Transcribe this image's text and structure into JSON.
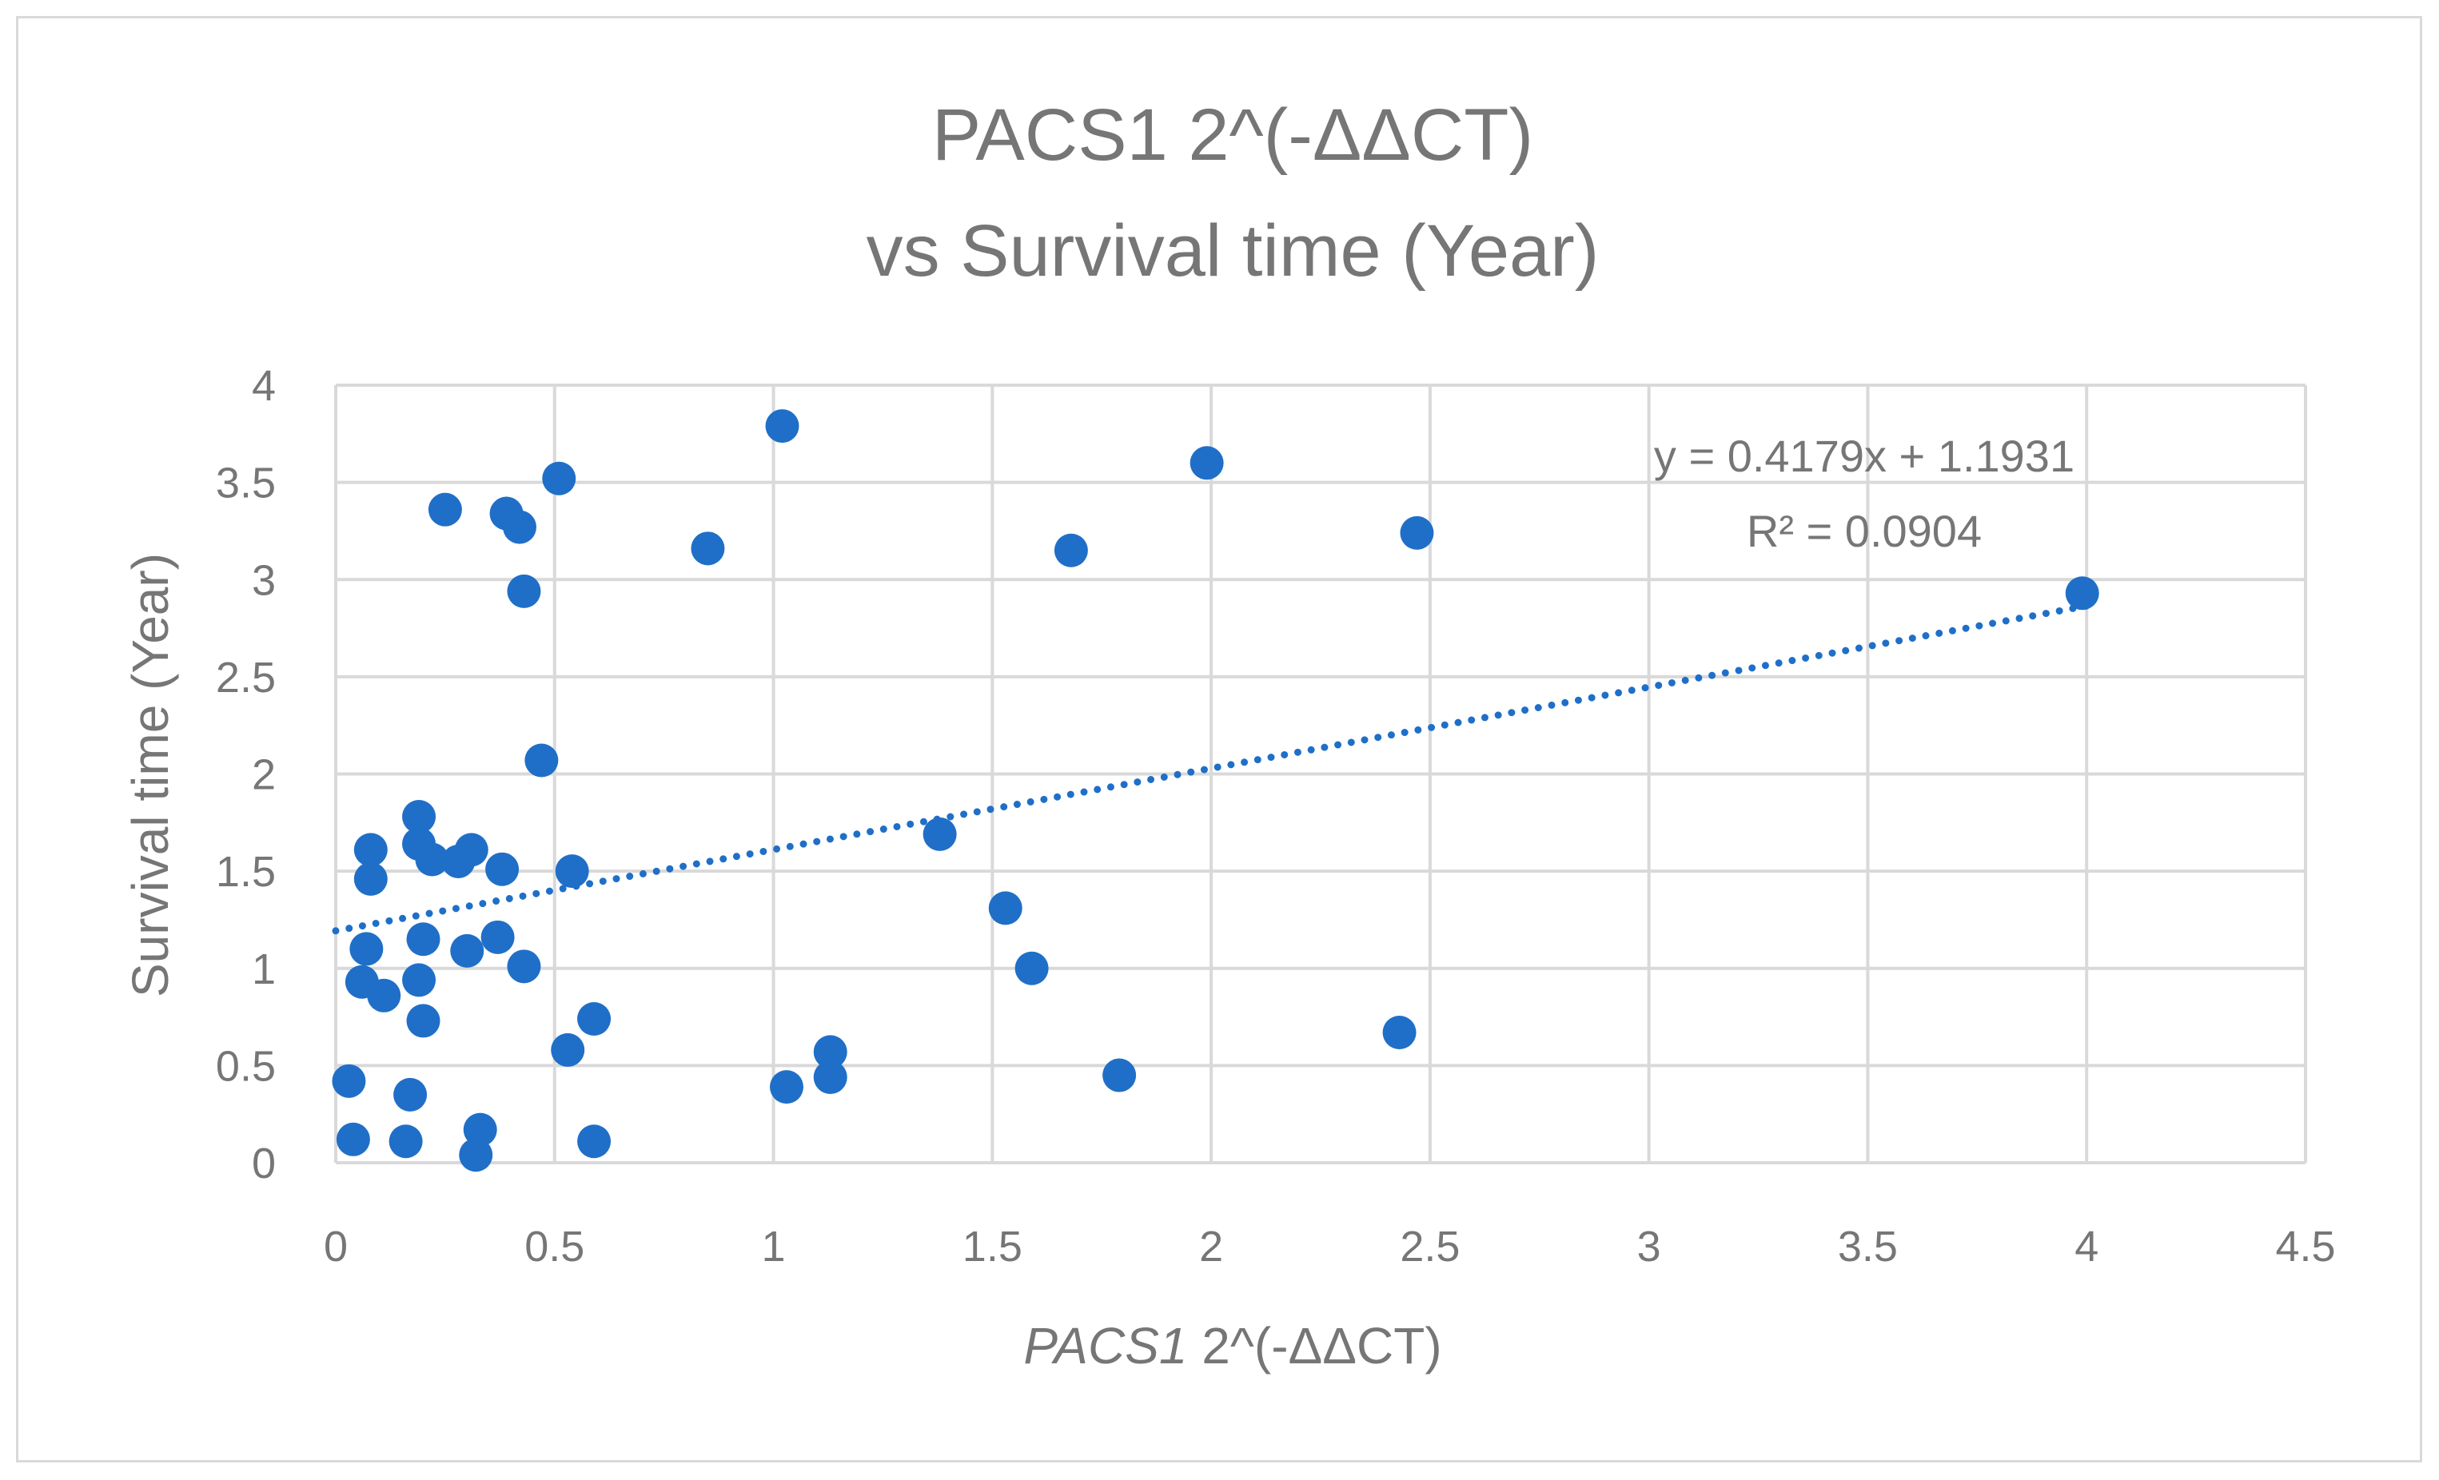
{
  "chart_data": {
    "type": "scatter",
    "title_lines": [
      "PACS1 2^(-ΔΔCT)",
      "vs Survival time (Year)"
    ],
    "xlabel_italic": "PACS1",
    "xlabel_rest": " 2^(-ΔΔCT)",
    "ylabel": "Survival time (Year)",
    "xlim": [
      0,
      4.5
    ],
    "ylim": [
      0,
      4
    ],
    "x_ticks": [
      "0",
      "0.5",
      "1",
      "1.5",
      "2",
      "2.5",
      "3",
      "3.5",
      "4",
      "4.5"
    ],
    "y_ticks": [
      "0",
      "0.5",
      "1",
      "1.5",
      "2",
      "2.5",
      "3",
      "3.5",
      "4"
    ],
    "grid": true,
    "marker_color": "#1f6fc8",
    "points": [
      [
        0.03,
        0.42
      ],
      [
        0.04,
        0.12
      ],
      [
        0.06,
        0.93
      ],
      [
        0.07,
        1.1
      ],
      [
        0.08,
        1.61
      ],
      [
        0.08,
        1.46
      ],
      [
        0.11,
        0.86
      ],
      [
        0.16,
        0.11
      ],
      [
        0.17,
        0.35
      ],
      [
        0.19,
        0.94
      ],
      [
        0.19,
        1.78
      ],
      [
        0.19,
        1.64
      ],
      [
        0.2,
        1.15
      ],
      [
        0.2,
        0.73
      ],
      [
        0.22,
        1.56
      ],
      [
        0.25,
        3.36
      ],
      [
        0.28,
        1.55
      ],
      [
        0.3,
        1.09
      ],
      [
        0.31,
        1.61
      ],
      [
        0.32,
        0.04
      ],
      [
        0.33,
        0.17
      ],
      [
        0.37,
        1.16
      ],
      [
        0.38,
        1.51
      ],
      [
        0.39,
        3.34
      ],
      [
        0.42,
        3.27
      ],
      [
        0.43,
        2.94
      ],
      [
        0.43,
        1.01
      ],
      [
        0.47,
        2.07
      ],
      [
        0.51,
        3.52
      ],
      [
        0.53,
        0.58
      ],
      [
        0.54,
        1.5
      ],
      [
        0.59,
        0.11
      ],
      [
        0.59,
        0.74
      ],
      [
        0.85,
        3.16
      ],
      [
        1.02,
        3.79
      ],
      [
        1.03,
        0.39
      ],
      [
        1.13,
        0.44
      ],
      [
        1.13,
        0.57
      ],
      [
        1.38,
        1.69
      ],
      [
        1.53,
        1.31
      ],
      [
        1.59,
        1.0
      ],
      [
        1.68,
        3.15
      ],
      [
        1.79,
        0.45
      ],
      [
        1.99,
        3.6
      ],
      [
        2.43,
        0.67
      ],
      [
        2.47,
        3.24
      ],
      [
        3.99,
        2.93
      ]
    ],
    "trendline": {
      "style": "dotted linear",
      "slope": 0.4179,
      "intercept": 1.1931,
      "x_range": [
        0,
        4
      ]
    },
    "equation_lines": [
      "y = 0.4179x + 1.1931",
      "R² = 0.0904"
    ]
  }
}
